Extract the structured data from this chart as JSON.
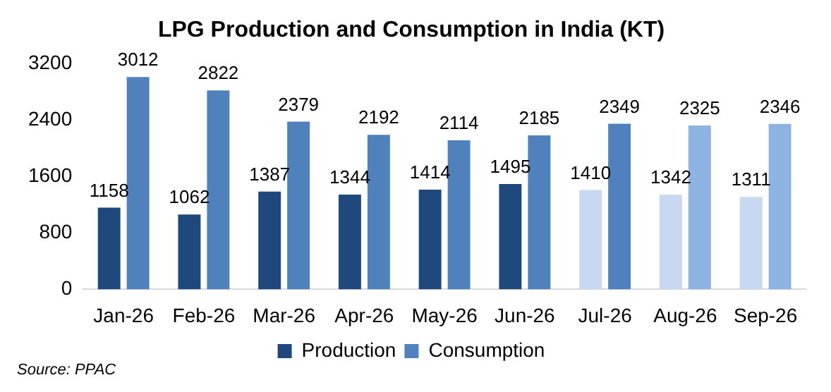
{
  "chart_data": {
    "type": "bar",
    "title": "LPG Production and Consumption in India (KT)",
    "categories": [
      "Jan-26",
      "Feb-26",
      "Mar-26",
      "Apr-26",
      "May-26",
      "Jun-26",
      "Jul-26",
      "Aug-26",
      "Sep-26"
    ],
    "series": [
      {
        "name": "Production",
        "color": "#1f497d",
        "colors": [
          "#1f497d",
          "#1f497d",
          "#1f497d",
          "#1f497d",
          "#1f497d",
          "#1f497d",
          "#c6d9f1",
          "#c6d9f1",
          "#c6d9f1"
        ],
        "values": [
          1158,
          1062,
          1387,
          1344,
          1414,
          1495,
          1410,
          1342,
          1311
        ]
      },
      {
        "name": "Consumption",
        "color": "#4f81bd",
        "colors": [
          "#4f81bd",
          "#4f81bd",
          "#4f81bd",
          "#4f81bd",
          "#4f81bd",
          "#4f81bd",
          "#4f81bd",
          "#8db3e2",
          "#8db3e2"
        ],
        "values": [
          3012,
          2822,
          2379,
          2192,
          2114,
          2185,
          2349,
          2325,
          2346
        ]
      }
    ],
    "ylim": [
      0,
      3200
    ],
    "yticks": [
      0,
      800,
      1600,
      2400,
      3200
    ],
    "grid": false,
    "legend": "bottom",
    "data_labels": true,
    "annotations": [
      "Source: PPAC"
    ]
  }
}
